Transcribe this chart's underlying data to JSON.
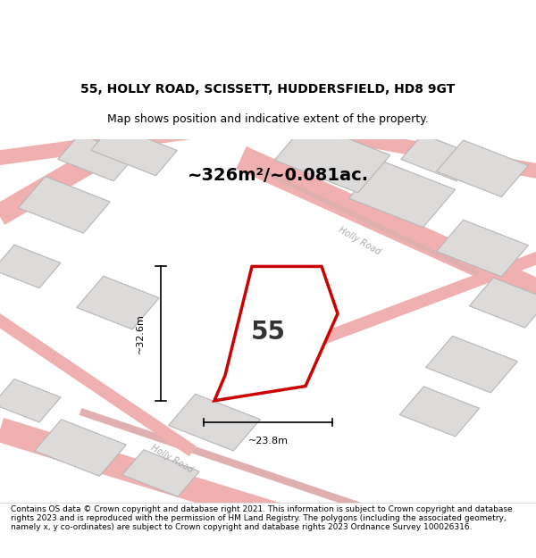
{
  "title_line1": "55, HOLLY ROAD, SCISSETT, HUDDERSFIELD, HD8 9GT",
  "title_line2": "Map shows position and indicative extent of the property.",
  "area_text": "~326m²/~0.081ac.",
  "label_55": "55",
  "dim_width": "~23.8m",
  "dim_height": "~32.6m",
  "footer_text": "Contains OS data © Crown copyright and database right 2021. This information is subject to Crown copyright and database rights 2023 and is reproduced with the permission of HM Land Registry. The polygons (including the associated geometry, namely x, y co-ordinates) are subject to Crown copyright and database rights 2023 Ordnance Survey 100026316.",
  "bg_color": "#f0eeee",
  "map_bg": "#f5f3f3",
  "plot_fill": "#ffffff",
  "plot_edge": "#cc0000",
  "road_color_light": "#f0b0b0",
  "road_color_dark": "#d08080",
  "building_fill": "#e0dddd",
  "building_edge": "#c0bbbb",
  "road_label_color": "#aaaaaa",
  "figsize": [
    6.0,
    6.25
  ],
  "dpi": 100
}
